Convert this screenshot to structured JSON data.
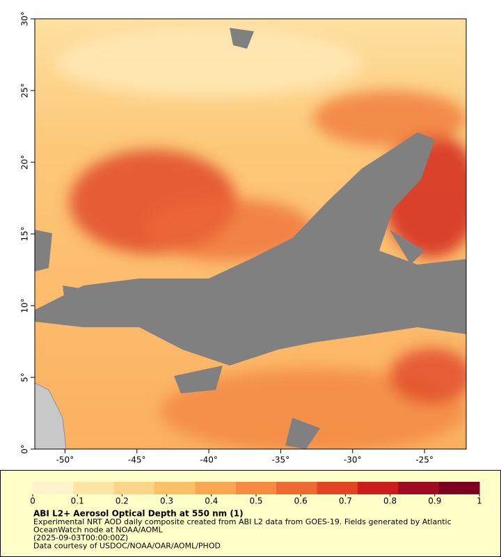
{
  "chart_data": {
    "type": "map",
    "title": "ABI L2+ Aerosol Optical Depth at 550 nm (1)",
    "notes": [
      "Experimental NRT AOD daily composite created from ABI L2 data from GOES-19. Fields generated by Atlantic",
      "OceanWatch node at NOAA/AOML",
      "(2025-09-03T00:00:00Z)",
      "Data courtesy of USDOC/NOAA/OAR/AOML/PHOD"
    ],
    "xlim": [
      -52.1,
      -22.1
    ],
    "ylim": [
      0,
      30
    ],
    "xticks": [
      {
        "value": -50,
        "label": "-50°"
      },
      {
        "value": -45,
        "label": "-45°"
      },
      {
        "value": -40,
        "label": "-40°"
      },
      {
        "value": -35,
        "label": "-35°"
      },
      {
        "value": -30,
        "label": "-30°"
      },
      {
        "value": -25,
        "label": "-25°"
      }
    ],
    "yticks": [
      {
        "value": 0,
        "label": "0°"
      },
      {
        "value": 5,
        "label": "5°"
      },
      {
        "value": 10,
        "label": "10°"
      },
      {
        "value": 15,
        "label": "15°"
      },
      {
        "value": 20,
        "label": "20°"
      },
      {
        "value": 25,
        "label": "25°"
      },
      {
        "value": 30,
        "label": "30°"
      }
    ],
    "colorbar_lim": [
      0,
      1
    ],
    "colorbar_ticks": [
      0,
      0.1,
      0.2,
      0.3,
      0.4,
      0.5,
      0.6,
      0.7,
      0.8,
      0.9,
      1
    ],
    "colormap": [
      "#fff3cc",
      "#ffe4a4",
      "#fdd488",
      "#fdc066",
      "#fba752",
      "#f78c40",
      "#ef6a30",
      "#e24424",
      "#cc1c1c",
      "#a00a22",
      "#7c0020"
    ]
  }
}
